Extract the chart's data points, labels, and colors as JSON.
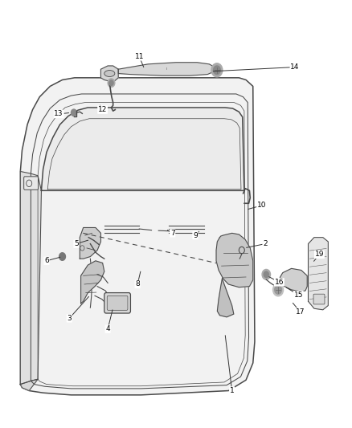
{
  "background_color": "#ffffff",
  "line_color": "#4a4a4a",
  "label_color": "#000000",
  "fig_width": 4.38,
  "fig_height": 5.33,
  "dpi": 100,
  "label_data": {
    "1": {
      "lpos": [
        0.66,
        0.085
      ],
      "tpos": [
        0.64,
        0.22
      ]
    },
    "2": {
      "lpos": [
        0.755,
        0.43
      ],
      "tpos": [
        0.695,
        0.42
      ]
    },
    "3": {
      "lpos": [
        0.195,
        0.255
      ],
      "tpos": [
        0.255,
        0.31
      ]
    },
    "4": {
      "lpos": [
        0.305,
        0.23
      ],
      "tpos": [
        0.32,
        0.28
      ]
    },
    "5": {
      "lpos": [
        0.215,
        0.43
      ],
      "tpos": [
        0.255,
        0.44
      ]
    },
    "6": {
      "lpos": [
        0.13,
        0.39
      ],
      "tpos": [
        0.175,
        0.4
      ]
    },
    "7": {
      "lpos": [
        0.49,
        0.455
      ],
      "tpos": [
        0.47,
        0.465
      ]
    },
    "8": {
      "lpos": [
        0.39,
        0.335
      ],
      "tpos": [
        0.4,
        0.37
      ]
    },
    "9": {
      "lpos": [
        0.555,
        0.45
      ],
      "tpos": [
        0.57,
        0.463
      ]
    },
    "10": {
      "lpos": [
        0.745,
        0.52
      ],
      "tpos": [
        0.7,
        0.51
      ]
    },
    "11": {
      "lpos": [
        0.395,
        0.87
      ],
      "tpos": [
        0.41,
        0.84
      ]
    },
    "12": {
      "lpos": [
        0.29,
        0.745
      ],
      "tpos": [
        0.28,
        0.76
      ]
    },
    "13": {
      "lpos": [
        0.165,
        0.735
      ],
      "tpos": [
        0.2,
        0.738
      ]
    },
    "14": {
      "lpos": [
        0.84,
        0.845
      ],
      "tpos": [
        0.6,
        0.835
      ]
    },
    "15": {
      "lpos": [
        0.85,
        0.31
      ],
      "tpos": [
        0.81,
        0.33
      ]
    },
    "16": {
      "lpos": [
        0.795,
        0.34
      ],
      "tpos": [
        0.76,
        0.355
      ]
    },
    "17": {
      "lpos": [
        0.855,
        0.27
      ],
      "tpos": [
        0.83,
        0.295
      ]
    },
    "19": {
      "lpos": [
        0.91,
        0.405
      ],
      "tpos": [
        0.89,
        0.385
      ]
    }
  }
}
